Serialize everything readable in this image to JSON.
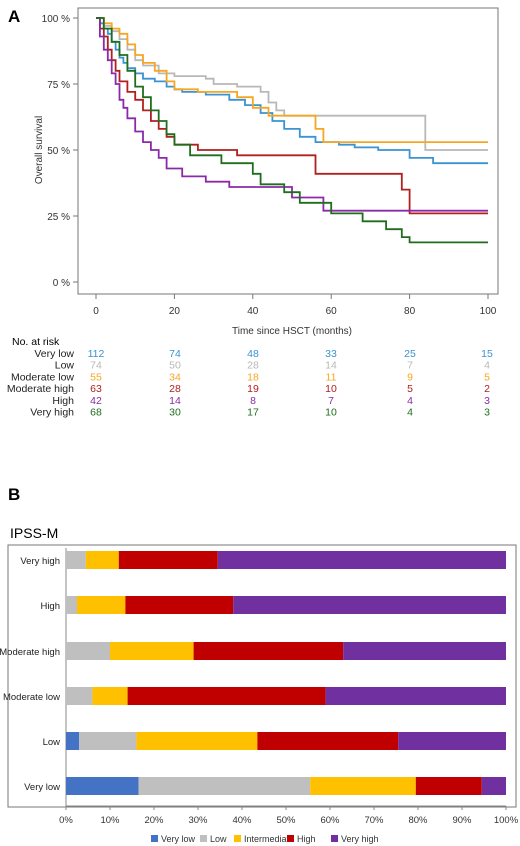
{
  "panel_a": {
    "panel_label": "A",
    "risk_title": "No. at risk"
  },
  "panel_b": {
    "panel_label": "B",
    "subtitle": "IPSS-M"
  },
  "chart_data": [
    {
      "type": "line",
      "step": true,
      "xlabel": "Time since HSCT (months)",
      "ylabel": "Overall survival",
      "xlim": [
        0,
        100
      ],
      "ylim": [
        0,
        1
      ],
      "xticks": [
        0,
        20,
        40,
        60,
        80,
        100
      ],
      "yticks": [
        "0 %",
        "25 %",
        "50 %",
        "75 %",
        "100 %"
      ],
      "yticks_values": [
        0,
        0.25,
        0.5,
        0.75,
        1.0
      ],
      "grid": false,
      "series": [
        {
          "name": "Very low",
          "color": "#3a93d2",
          "points": [
            [
              0,
              1.0
            ],
            [
              1,
              0.98
            ],
            [
              2,
              0.96
            ],
            [
              3,
              0.94
            ],
            [
              4,
              0.91
            ],
            [
              5,
              0.88
            ],
            [
              6,
              0.85
            ],
            [
              7,
              0.83
            ],
            [
              8,
              0.81
            ],
            [
              10,
              0.79
            ],
            [
              12,
              0.77
            ],
            [
              15,
              0.76
            ],
            [
              18,
              0.74
            ],
            [
              20,
              0.73
            ],
            [
              22,
              0.72
            ],
            [
              28,
              0.71
            ],
            [
              34,
              0.69
            ],
            [
              38,
              0.67
            ],
            [
              42,
              0.64
            ],
            [
              45,
              0.61
            ],
            [
              48,
              0.58
            ],
            [
              52,
              0.55
            ],
            [
              56,
              0.53
            ],
            [
              62,
              0.52
            ],
            [
              66,
              0.51
            ],
            [
              72,
              0.5
            ],
            [
              80,
              0.47
            ],
            [
              86,
              0.45
            ],
            [
              100,
              0.45
            ]
          ]
        },
        {
          "name": "Low",
          "color": "#b8b8b8",
          "points": [
            [
              0,
              1.0
            ],
            [
              2,
              0.97
            ],
            [
              4,
              0.95
            ],
            [
              6,
              0.92
            ],
            [
              8,
              0.88
            ],
            [
              10,
              0.84
            ],
            [
              12,
              0.82
            ],
            [
              16,
              0.79
            ],
            [
              20,
              0.78
            ],
            [
              28,
              0.77
            ],
            [
              30,
              0.75
            ],
            [
              36,
              0.74
            ],
            [
              42,
              0.72
            ],
            [
              44,
              0.68
            ],
            [
              46,
              0.65
            ],
            [
              48,
              0.63
            ],
            [
              84,
              0.5
            ],
            [
              100,
              0.5
            ]
          ]
        },
        {
          "name": "Moderate low",
          "color": "#f5a623",
          "points": [
            [
              0,
              1.0
            ],
            [
              2,
              0.98
            ],
            [
              4,
              0.96
            ],
            [
              6,
              0.94
            ],
            [
              8,
              0.9
            ],
            [
              10,
              0.86
            ],
            [
              12,
              0.83
            ],
            [
              15,
              0.8
            ],
            [
              18,
              0.76
            ],
            [
              20,
              0.73
            ],
            [
              26,
              0.72
            ],
            [
              36,
              0.7
            ],
            [
              40,
              0.66
            ],
            [
              44,
              0.63
            ],
            [
              56,
              0.58
            ],
            [
              58,
              0.53
            ],
            [
              100,
              0.53
            ]
          ]
        },
        {
          "name": "Moderate high",
          "color": "#b0201e",
          "points": [
            [
              0,
              1.0
            ],
            [
              1,
              0.96
            ],
            [
              2,
              0.93
            ],
            [
              3,
              0.88
            ],
            [
              4,
              0.84
            ],
            [
              5,
              0.8
            ],
            [
              6,
              0.76
            ],
            [
              8,
              0.72
            ],
            [
              10,
              0.69
            ],
            [
              12,
              0.65
            ],
            [
              14,
              0.61
            ],
            [
              16,
              0.58
            ],
            [
              18,
              0.55
            ],
            [
              20,
              0.52
            ],
            [
              26,
              0.5
            ],
            [
              36,
              0.48
            ],
            [
              56,
              0.41
            ],
            [
              78,
              0.35
            ],
            [
              80,
              0.26
            ],
            [
              100,
              0.26
            ]
          ]
        },
        {
          "name": "High",
          "color": "#8a2aa8",
          "points": [
            [
              0,
              1.0
            ],
            [
              1,
              0.93
            ],
            [
              2,
              0.88
            ],
            [
              3,
              0.84
            ],
            [
              4,
              0.79
            ],
            [
              5,
              0.75
            ],
            [
              6,
              0.69
            ],
            [
              7,
              0.66
            ],
            [
              8,
              0.62
            ],
            [
              10,
              0.57
            ],
            [
              12,
              0.53
            ],
            [
              14,
              0.5
            ],
            [
              16,
              0.47
            ],
            [
              18,
              0.43
            ],
            [
              22,
              0.4
            ],
            [
              28,
              0.38
            ],
            [
              34,
              0.36
            ],
            [
              50,
              0.32
            ],
            [
              58,
              0.27
            ],
            [
              100,
              0.27
            ]
          ]
        },
        {
          "name": "Very high",
          "color": "#1e6e1e",
          "points": [
            [
              0,
              1.0
            ],
            [
              2,
              0.96
            ],
            [
              4,
              0.91
            ],
            [
              6,
              0.86
            ],
            [
              8,
              0.8
            ],
            [
              10,
              0.74
            ],
            [
              12,
              0.7
            ],
            [
              14,
              0.65
            ],
            [
              16,
              0.61
            ],
            [
              18,
              0.56
            ],
            [
              20,
              0.52
            ],
            [
              24,
              0.48
            ],
            [
              32,
              0.45
            ],
            [
              40,
              0.41
            ],
            [
              42,
              0.37
            ],
            [
              48,
              0.34
            ],
            [
              52,
              0.3
            ],
            [
              60,
              0.26
            ],
            [
              68,
              0.23
            ],
            [
              74,
              0.2
            ],
            [
              78,
              0.17
            ],
            [
              80,
              0.15
            ],
            [
              100,
              0.15
            ]
          ]
        }
      ],
      "risk_table": {
        "times": [
          0,
          20,
          40,
          60,
          80,
          100
        ],
        "rows": [
          {
            "label": "Very low",
            "color": "#3a93d2",
            "values": [
              "112",
              "74",
              "48",
              "33",
              "25",
              "15"
            ]
          },
          {
            "label": "Low",
            "color": "#b8b8b8",
            "values": [
              "74",
              "50",
              "28",
              "14",
              "7",
              "4"
            ]
          },
          {
            "label": "Moderate low",
            "color": "#f5a623",
            "values": [
              "55",
              "34",
              "18",
              "11",
              "9",
              "5"
            ]
          },
          {
            "label": "Moderate high",
            "color": "#b0201e",
            "values": [
              "63",
              "28",
              "19",
              "10",
              "5",
              "2"
            ]
          },
          {
            "label": "High",
            "color": "#8a2aa8",
            "values": [
              "42",
              "14",
              "8",
              "7",
              "4",
              "3"
            ]
          },
          {
            "label": "Very high",
            "color": "#1e6e1e",
            "values": [
              "68",
              "30",
              "17",
              "10",
              "4",
              "3"
            ]
          }
        ]
      }
    },
    {
      "type": "bar",
      "stacked": true,
      "orientation": "horizontal",
      "categories": [
        "Very high",
        "High",
        "Moderate high",
        "Moderate low",
        "Low",
        "Very low"
      ],
      "xlim": [
        0,
        100
      ],
      "xticks": [
        "0%",
        "10%",
        "20%",
        "30%",
        "40%",
        "50%",
        "60%",
        "70%",
        "80%",
        "90%",
        "100%"
      ],
      "legend_position": "bottom",
      "series": [
        {
          "name": "Very low",
          "color": "#4472c4",
          "values": [
            0,
            0,
            0,
            0,
            3,
            16.5
          ]
        },
        {
          "name": "Low",
          "color": "#bfbfbf",
          "values": [
            4.5,
            2.5,
            10,
            6,
            13,
            39
          ]
        },
        {
          "name": "Intermediate",
          "color": "#ffc000",
          "values": [
            7.5,
            11,
            19,
            8,
            27.5,
            24
          ]
        },
        {
          "name": "High",
          "color": "#c00000",
          "values": [
            22.5,
            24.5,
            34,
            45,
            32,
            15
          ]
        },
        {
          "name": "Very high",
          "color": "#7030a0",
          "values": [
            65.5,
            62,
            37,
            41,
            24.5,
            5.5
          ]
        }
      ]
    }
  ]
}
